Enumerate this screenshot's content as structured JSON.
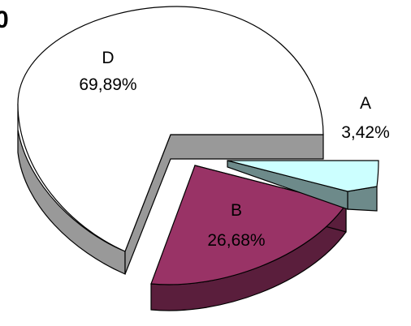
{
  "chart_data": {
    "type": "pie",
    "title": "0",
    "three_d": true,
    "exploded": true,
    "slices": [
      {
        "label": "A",
        "value_label": "3,42%",
        "value": 3.42,
        "color": "#ccffff",
        "side_color": "#6d8a8a"
      },
      {
        "label": "B",
        "value_label": "26,68%",
        "value": 26.68,
        "color": "#993366",
        "side_color": "#5a1e3c"
      },
      {
        "label": "D",
        "value_label": "69,89%",
        "value": 69.89,
        "color": "#ffffff",
        "side_color": "#999999"
      }
    ]
  }
}
